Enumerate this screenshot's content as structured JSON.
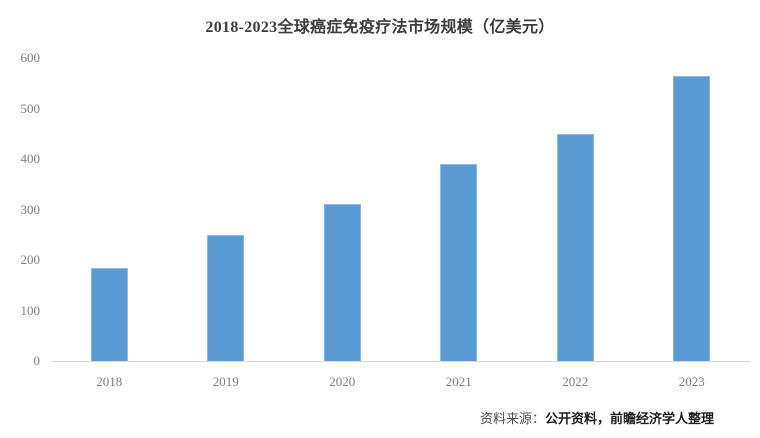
{
  "title": "2018-2023全球癌症免疫疗法市场规模（亿美元）",
  "source": {
    "prefix": "资料来源：",
    "main": "公开资料，前瞻经济学人整理"
  },
  "colors": {
    "bar_fill": "#5B9BD5",
    "bar_border": "#8FB9E1",
    "axis_line": "#D9D9D9",
    "tick_text": "#7F7F7F",
    "title_text": "#3D3D3D"
  },
  "chart_data": {
    "type": "bar",
    "title": "2018-2023全球癌症免疫疗法市场规模（亿美元）",
    "categories": [
      "2018",
      "2019",
      "2020",
      "2021",
      "2022",
      "2023"
    ],
    "values": [
      185,
      250,
      310,
      390,
      450,
      565
    ],
    "xlabel": "",
    "ylabel": "",
    "ylim": [
      0,
      600
    ],
    "yticks": [
      0,
      100,
      200,
      300,
      400,
      500,
      600
    ],
    "grid": false,
    "legend": "none",
    "bar_color": "#5B9BD5",
    "source_note": "资料来源：公开资料，前瞻经济学人整理"
  }
}
